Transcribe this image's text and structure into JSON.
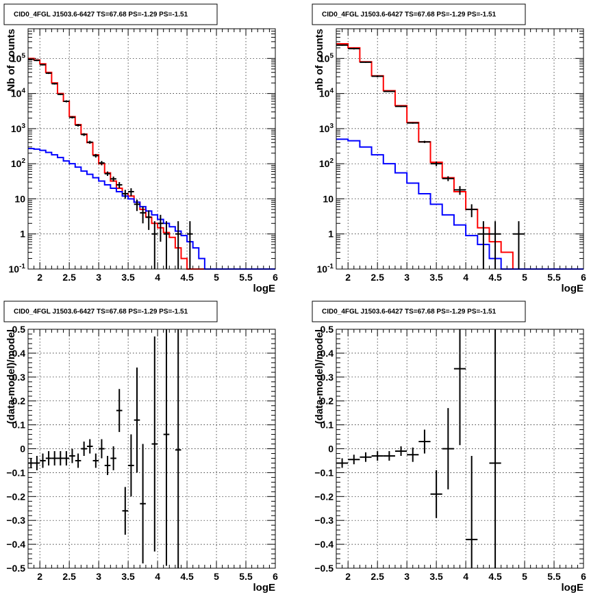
{
  "chart_data": [
    {
      "id": "p1",
      "type": "line",
      "title": "CID0_4FGL J1503.6-6427 TS=67.68 PS=-1.29 PS=-1.51",
      "xlabel": "logE",
      "ylabel": "Nb of counts",
      "xlim": [
        1.8,
        6.0
      ],
      "ylim": [
        0.1,
        700000
      ],
      "yscale": "log",
      "grid": true,
      "xticks": [
        2,
        2.5,
        3,
        3.5,
        4,
        4.5,
        5,
        5.5,
        6
      ],
      "yticks": [
        {
          "v": 0.1,
          "base": "10",
          "exp": "-1"
        },
        {
          "v": 1,
          "base": "1",
          "exp": ""
        },
        {
          "v": 10,
          "base": "10",
          "exp": ""
        },
        {
          "v": 100,
          "base": "10",
          "exp": "2"
        },
        {
          "v": 1000,
          "base": "10",
          "exp": "3"
        },
        {
          "v": 10000,
          "base": "10",
          "exp": "4"
        },
        {
          "v": 100000,
          "base": "10",
          "exp": "5"
        }
      ],
      "edges": [
        1.8,
        1.9,
        2.0,
        2.1,
        2.2,
        2.3,
        2.4,
        2.5,
        2.6,
        2.7,
        2.8,
        2.9,
        3.0,
        3.1,
        3.2,
        3.3,
        3.4,
        3.5,
        3.6,
        3.7,
        3.8,
        3.9,
        4.0,
        4.1,
        4.2,
        4.3,
        4.4,
        4.5,
        4.6,
        4.7,
        4.8,
        4.9,
        5.0,
        5.1,
        5.2,
        5.3,
        5.4,
        5.5,
        5.6,
        5.7,
        5.8,
        5.9,
        6.0
      ],
      "series": [
        {
          "color": "#ff0000",
          "values": [
            100000,
            90000,
            70000,
            40000,
            20000,
            10000,
            6000,
            2200,
            1300,
            700,
            400,
            180,
            100,
            55,
            32,
            20,
            14,
            12,
            8,
            5,
            3,
            2,
            1.5,
            1.1,
            0.8,
            0.4,
            0.2,
            0.1,
            0.1,
            0.1,
            0.1,
            0.1,
            0.1,
            0.1,
            0.1,
            0.1,
            0.1,
            0.1,
            0.1,
            0.1,
            0.1,
            0.1
          ]
        },
        {
          "color": "#0000ff",
          "values": [
            270,
            260,
            240,
            210,
            180,
            150,
            120,
            100,
            80,
            62,
            50,
            40,
            32,
            25,
            20,
            16,
            12,
            10,
            8,
            6,
            4.5,
            3.5,
            2.6,
            2,
            1.6,
            1.2,
            0.9,
            0.6,
            0.4,
            0.2,
            0.1,
            0.1,
            0.1,
            0.1,
            0.1,
            0.1,
            0.1,
            0.1,
            0.1,
            0.1,
            0.1,
            0.1
          ]
        }
      ],
      "points": [
        {
          "x": 1.85,
          "y": 95000,
          "lo": 90000,
          "hi": 100000
        },
        {
          "x": 1.95,
          "y": 88000,
          "lo": 84000,
          "hi": 92000
        },
        {
          "x": 2.05,
          "y": 66000,
          "lo": 63000,
          "hi": 69000
        },
        {
          "x": 2.15,
          "y": 38000,
          "lo": 36000,
          "hi": 40000
        },
        {
          "x": 2.25,
          "y": 19000,
          "lo": 18000,
          "hi": 20000
        },
        {
          "x": 2.35,
          "y": 9500,
          "lo": 9000,
          "hi": 10000
        },
        {
          "x": 2.45,
          "y": 6000,
          "lo": 5600,
          "hi": 6400
        },
        {
          "x": 2.55,
          "y": 2100,
          "lo": 1950,
          "hi": 2250
        },
        {
          "x": 2.65,
          "y": 1250,
          "lo": 1150,
          "hi": 1350
        },
        {
          "x": 2.75,
          "y": 680,
          "lo": 620,
          "hi": 740
        },
        {
          "x": 2.85,
          "y": 410,
          "lo": 370,
          "hi": 450
        },
        {
          "x": 2.95,
          "y": 170,
          "lo": 150,
          "hi": 190
        },
        {
          "x": 3.05,
          "y": 105,
          "lo": 90,
          "hi": 120
        },
        {
          "x": 3.15,
          "y": 52,
          "lo": 45,
          "hi": 60
        },
        {
          "x": 3.25,
          "y": 37,
          "lo": 31,
          "hi": 43
        },
        {
          "x": 3.35,
          "y": 25,
          "lo": 20,
          "hi": 30
        },
        {
          "x": 3.45,
          "y": 14,
          "lo": 10,
          "hi": 18
        },
        {
          "x": 3.55,
          "y": 16,
          "lo": 12,
          "hi": 20
        },
        {
          "x": 3.65,
          "y": 7,
          "lo": 4.5,
          "hi": 9.5
        },
        {
          "x": 3.75,
          "y": 4,
          "lo": 2,
          "hi": 6
        },
        {
          "x": 3.85,
          "y": 3,
          "lo": 1.3,
          "hi": 4.7
        },
        {
          "x": 3.95,
          "y": 1,
          "lo": 0.1,
          "hi": 2.3
        },
        {
          "x": 4.05,
          "y": 2,
          "lo": 0.6,
          "hi": 3.5
        },
        {
          "x": 4.15,
          "y": 1,
          "lo": 0.1,
          "hi": 2.3
        },
        {
          "x": 4.35,
          "y": 1,
          "lo": 0.1,
          "hi": 2.3
        },
        {
          "x": 4.55,
          "y": 1,
          "lo": 0.1,
          "hi": 2.3
        }
      ]
    },
    {
      "id": "p2",
      "type": "line",
      "title": "CID0_4FGL J1503.6-6427 TS=67.68 PS=-1.29 PS=-1.51",
      "xlabel": "logE",
      "ylabel": "nb of counts",
      "xlim": [
        1.8,
        6.0
      ],
      "ylim": [
        0.1,
        700000
      ],
      "yscale": "log",
      "grid": true,
      "xticks": [
        2,
        2.5,
        3,
        3.5,
        4,
        4.5,
        5,
        5.5,
        6
      ],
      "yticks": [
        {
          "v": 0.1,
          "base": "10",
          "exp": "-1"
        },
        {
          "v": 1,
          "base": "1",
          "exp": ""
        },
        {
          "v": 10,
          "base": "10",
          "exp": ""
        },
        {
          "v": 100,
          "base": "10",
          "exp": "2"
        },
        {
          "v": 1000,
          "base": "10",
          "exp": "3"
        },
        {
          "v": 10000,
          "base": "10",
          "exp": "4"
        },
        {
          "v": 100000,
          "base": "10",
          "exp": "5"
        }
      ],
      "edges": [
        1.8,
        2.0,
        2.2,
        2.4,
        2.6,
        2.8,
        3.0,
        3.2,
        3.4,
        3.6,
        3.8,
        4.0,
        4.2,
        4.4,
        4.6,
        4.8,
        5.0,
        5.2,
        5.4,
        5.6,
        5.8,
        6.0
      ],
      "series": [
        {
          "color": "#ff0000",
          "values": [
            260000,
            200000,
            80000,
            32000,
            12000,
            4500,
            1500,
            420,
            110,
            40,
            16,
            5,
            1.5,
            0.6,
            0.3,
            0.1,
            0.1,
            0.1,
            0.1,
            0.1,
            0.1
          ]
        },
        {
          "color": "#0000ff",
          "values": [
            500,
            450,
            300,
            180,
            100,
            55,
            28,
            14,
            7,
            3.5,
            1.8,
            0.9,
            0.5,
            0.2,
            0.1,
            0.1,
            0.1,
            0.1,
            0.1,
            0.1,
            0.1
          ]
        }
      ],
      "points": [
        {
          "x": 1.9,
          "y": 240000,
          "lo": 230000,
          "hi": 250000
        },
        {
          "x": 2.1,
          "y": 190000,
          "lo": 180000,
          "hi": 200000
        },
        {
          "x": 2.3,
          "y": 78000,
          "lo": 75000,
          "hi": 81000
        },
        {
          "x": 2.5,
          "y": 31000,
          "lo": 29000,
          "hi": 33000
        },
        {
          "x": 2.7,
          "y": 11500,
          "lo": 11000,
          "hi": 12000
        },
        {
          "x": 2.9,
          "y": 4300,
          "lo": 4100,
          "hi": 4500
        },
        {
          "x": 3.1,
          "y": 1450,
          "lo": 1380,
          "hi": 1520
        },
        {
          "x": 3.3,
          "y": 420,
          "lo": 390,
          "hi": 450
        },
        {
          "x": 3.5,
          "y": 100,
          "lo": 85,
          "hi": 115
        },
        {
          "x": 3.7,
          "y": 38,
          "lo": 32,
          "hi": 44
        },
        {
          "x": 3.9,
          "y": 18,
          "lo": 13,
          "hi": 23
        },
        {
          "x": 4.1,
          "y": 5,
          "lo": 3,
          "hi": 7
        },
        {
          "x": 4.3,
          "y": 1,
          "lo": 0.1,
          "hi": 2.3
        },
        {
          "x": 4.5,
          "y": 1,
          "lo": 0.1,
          "hi": 2.3
        },
        {
          "x": 4.9,
          "y": 1,
          "lo": 0.1,
          "hi": 2.3
        }
      ]
    },
    {
      "id": "p3",
      "type": "scatter",
      "title": "CID0_4FGL J1503.6-6427 TS=67.68 PS=-1.29 PS=-1.51",
      "xlabel": "logE",
      "ylabel": "(data-model)/model",
      "xlim": [
        1.8,
        6.0
      ],
      "ylim": [
        -0.5,
        0.5
      ],
      "yscale": "linear",
      "grid": true,
      "xticks": [
        2,
        2.5,
        3,
        3.5,
        4,
        4.5,
        5,
        5.5,
        6
      ],
      "yticks": [
        {
          "v": -0.5,
          "base": "−0.5",
          "exp": ""
        },
        {
          "v": -0.4,
          "base": "−0.4",
          "exp": ""
        },
        {
          "v": -0.3,
          "base": "−0.3",
          "exp": ""
        },
        {
          "v": -0.2,
          "base": "−0.2",
          "exp": ""
        },
        {
          "v": -0.1,
          "base": "−0.1",
          "exp": ""
        },
        {
          "v": 0,
          "base": "0",
          "exp": ""
        },
        {
          "v": 0.1,
          "base": "0.1",
          "exp": ""
        },
        {
          "v": 0.2,
          "base": "0.2",
          "exp": ""
        },
        {
          "v": 0.3,
          "base": "0.3",
          "exp": ""
        },
        {
          "v": 0.4,
          "base": "0.4",
          "exp": ""
        },
        {
          "v": 0.5,
          "base": "0.5",
          "exp": ""
        }
      ],
      "xhalf": 0.05,
      "points": [
        {
          "x": 1.85,
          "y": -0.06,
          "err": 0.02
        },
        {
          "x": 1.95,
          "y": -0.06,
          "err": 0.03
        },
        {
          "x": 2.05,
          "y": -0.05,
          "err": 0.03
        },
        {
          "x": 2.15,
          "y": -0.04,
          "err": 0.03
        },
        {
          "x": 2.25,
          "y": -0.04,
          "err": 0.03
        },
        {
          "x": 2.35,
          "y": -0.04,
          "err": 0.03
        },
        {
          "x": 2.45,
          "y": -0.04,
          "err": 0.03
        },
        {
          "x": 2.55,
          "y": -0.03,
          "err": 0.03
        },
        {
          "x": 2.65,
          "y": -0.05,
          "err": 0.03
        },
        {
          "x": 2.75,
          "y": 0.0,
          "err": 0.03
        },
        {
          "x": 2.85,
          "y": 0.01,
          "err": 0.03
        },
        {
          "x": 2.95,
          "y": -0.05,
          "err": 0.03
        },
        {
          "x": 3.05,
          "y": 0.0,
          "err": 0.04
        },
        {
          "x": 3.15,
          "y": -0.07,
          "err": 0.04
        },
        {
          "x": 3.25,
          "y": -0.04,
          "err": 0.05
        },
        {
          "x": 3.35,
          "y": 0.16,
          "err": 0.09
        },
        {
          "x": 3.45,
          "y": -0.26,
          "err": 0.1
        },
        {
          "x": 3.55,
          "y": -0.07,
          "err": 0.13
        },
        {
          "x": 3.65,
          "y": 0.12,
          "err": 0.22
        },
        {
          "x": 3.75,
          "y": -0.23,
          "err": 0.25
        },
        {
          "x": 3.95,
          "y": 0.02,
          "err": 0.45
        },
        {
          "x": 4.15,
          "y": 0.06,
          "err": 0.55
        },
        {
          "x": 4.35,
          "y": -0.005,
          "err": 0.55
        }
      ]
    },
    {
      "id": "p4",
      "type": "scatter",
      "title": "CID0_4FGL J1503.6-6427 TS=67.68 PS=-1.29 PS=-1.51",
      "xlabel": "logE",
      "ylabel": "(data-model)/model",
      "xlim": [
        1.8,
        6.0
      ],
      "ylim": [
        -0.5,
        0.5
      ],
      "yscale": "linear",
      "grid": true,
      "xticks": [
        2,
        2.5,
        3,
        3.5,
        4,
        4.5,
        5,
        5.5,
        6
      ],
      "yticks": [
        {
          "v": -0.5,
          "base": "−0.5",
          "exp": ""
        },
        {
          "v": -0.4,
          "base": "−0.4",
          "exp": ""
        },
        {
          "v": -0.3,
          "base": "−0.3",
          "exp": ""
        },
        {
          "v": -0.2,
          "base": "−0.2",
          "exp": ""
        },
        {
          "v": -0.1,
          "base": "−0.1",
          "exp": ""
        },
        {
          "v": 0,
          "base": "0",
          "exp": ""
        },
        {
          "v": 0.1,
          "base": "0.1",
          "exp": ""
        },
        {
          "v": 0.2,
          "base": "0.2",
          "exp": ""
        },
        {
          "v": 0.3,
          "base": "0.3",
          "exp": ""
        },
        {
          "v": 0.4,
          "base": "0.4",
          "exp": ""
        },
        {
          "v": 0.5,
          "base": "0.5",
          "exp": ""
        }
      ],
      "xhalf": 0.1,
      "points": [
        {
          "x": 1.9,
          "y": -0.06,
          "err": 0.02
        },
        {
          "x": 2.1,
          "y": -0.045,
          "err": 0.02
        },
        {
          "x": 2.3,
          "y": -0.035,
          "err": 0.02
        },
        {
          "x": 2.5,
          "y": -0.03,
          "err": 0.02
        },
        {
          "x": 2.7,
          "y": -0.03,
          "err": 0.02
        },
        {
          "x": 2.9,
          "y": -0.01,
          "err": 0.02
        },
        {
          "x": 3.1,
          "y": -0.025,
          "err": 0.03
        },
        {
          "x": 3.3,
          "y": 0.03,
          "err": 0.05
        },
        {
          "x": 3.5,
          "y": -0.19,
          "err": 0.1
        },
        {
          "x": 3.7,
          "y": 0.0,
          "err": 0.17
        },
        {
          "x": 3.9,
          "y": 0.335,
          "err": 0.32
        },
        {
          "x": 4.1,
          "y": -0.38,
          "err": 0.35
        },
        {
          "x": 4.5,
          "y": -0.06,
          "err": 0.6
        }
      ]
    }
  ]
}
